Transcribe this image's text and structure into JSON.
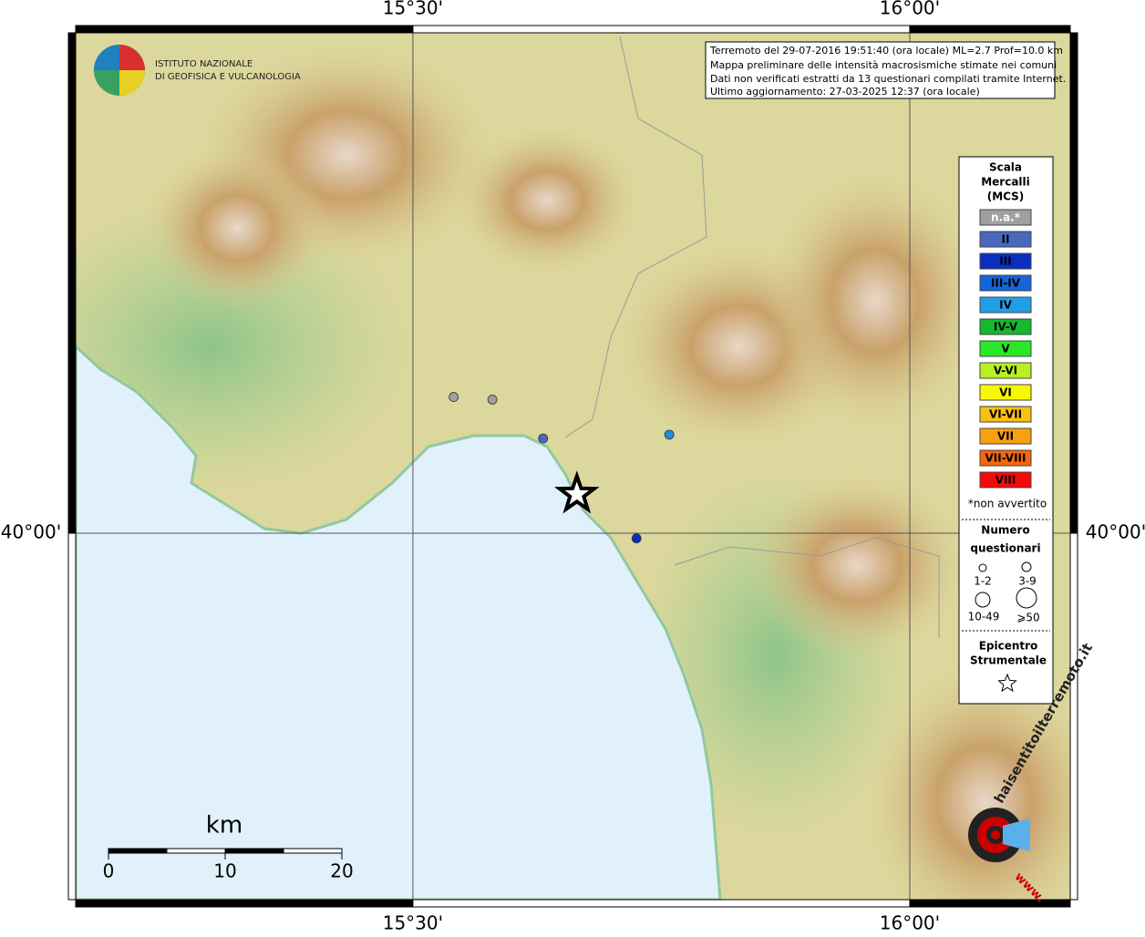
{
  "map": {
    "xlim": [
      15.1606,
      16.1615
    ],
    "ylim": [
      39.7175,
      40.3858
    ],
    "xticks": [
      {
        "value": 15.5,
        "label": "15°30'"
      },
      {
        "value": 16.0,
        "label": "16°00'"
      }
    ],
    "yticks": [
      {
        "value": 40.0,
        "label": "40°00'"
      }
    ],
    "logo": [
      "ISTITUTO NAZIONALE",
      "DI GEOFISICA E VULCANOLOGIA"
    ],
    "info": [
      "Terremoto del 29-07-2016 19:51:40 (ora locale) ML=2.7 Prof=10.0 km",
      "Mappa preliminare delle intensità macrosismiche stimate nei comuni",
      "Dati non verificati estratti da 13 questionari compilati tramite Internet.",
      "Ultimo aggiornamento: 27-03-2025 12:37 (ora locale)"
    ],
    "points": [
      {
        "lon": 15.541,
        "lat": 40.105,
        "color": "#a0a0a0"
      },
      {
        "lon": 15.58,
        "lat": 40.103,
        "color": "#a0a0a0"
      },
      {
        "lon": 15.631,
        "lat": 40.073,
        "color": "#4a68c0"
      },
      {
        "lon": 15.758,
        "lat": 40.076,
        "color": "#1f8fe0"
      },
      {
        "lon": 15.725,
        "lat": 39.996,
        "color": "#0a2fc0"
      }
    ],
    "epicenter": {
      "lon": 15.665,
      "lat": 40.03
    },
    "legend": {
      "title": [
        "Scala",
        "Mercalli",
        "(MCS)"
      ],
      "items": [
        {
          "label": "n.a.*",
          "color": "#a0a0a0"
        },
        {
          "label": "II",
          "color": "#4a68c0"
        },
        {
          "label": "III",
          "color": "#0a2fc0"
        },
        {
          "label": "III-IV",
          "color": "#1565d8"
        },
        {
          "label": "IV",
          "color": "#1f9fe8"
        },
        {
          "label": "IV-V",
          "color": "#15b830"
        },
        {
          "label": "V",
          "color": "#28e828"
        },
        {
          "label": "V-VI",
          "color": "#b8f020"
        },
        {
          "label": "VI",
          "color": "#f8f800"
        },
        {
          "label": "VI-VII",
          "color": "#f8c010"
        },
        {
          "label": "VII",
          "color": "#f8a010"
        },
        {
          "label": "VII-VIII",
          "color": "#f86808"
        },
        {
          "label": "VIII",
          "color": "#f80808"
        }
      ],
      "note": "*non avvertito",
      "size_title": [
        "Numero",
        "questionari"
      ],
      "sizes": [
        "1-2",
        "3-9",
        "10-49",
        "⩾50"
      ],
      "epi_title": [
        "Epicentro",
        "Strumentale"
      ]
    },
    "scalebar": {
      "unit": "km",
      "ticks": [
        0,
        10,
        20
      ]
    },
    "watermark": {
      "site": "haisentitoilterremoto.it",
      "www": "www."
    }
  }
}
